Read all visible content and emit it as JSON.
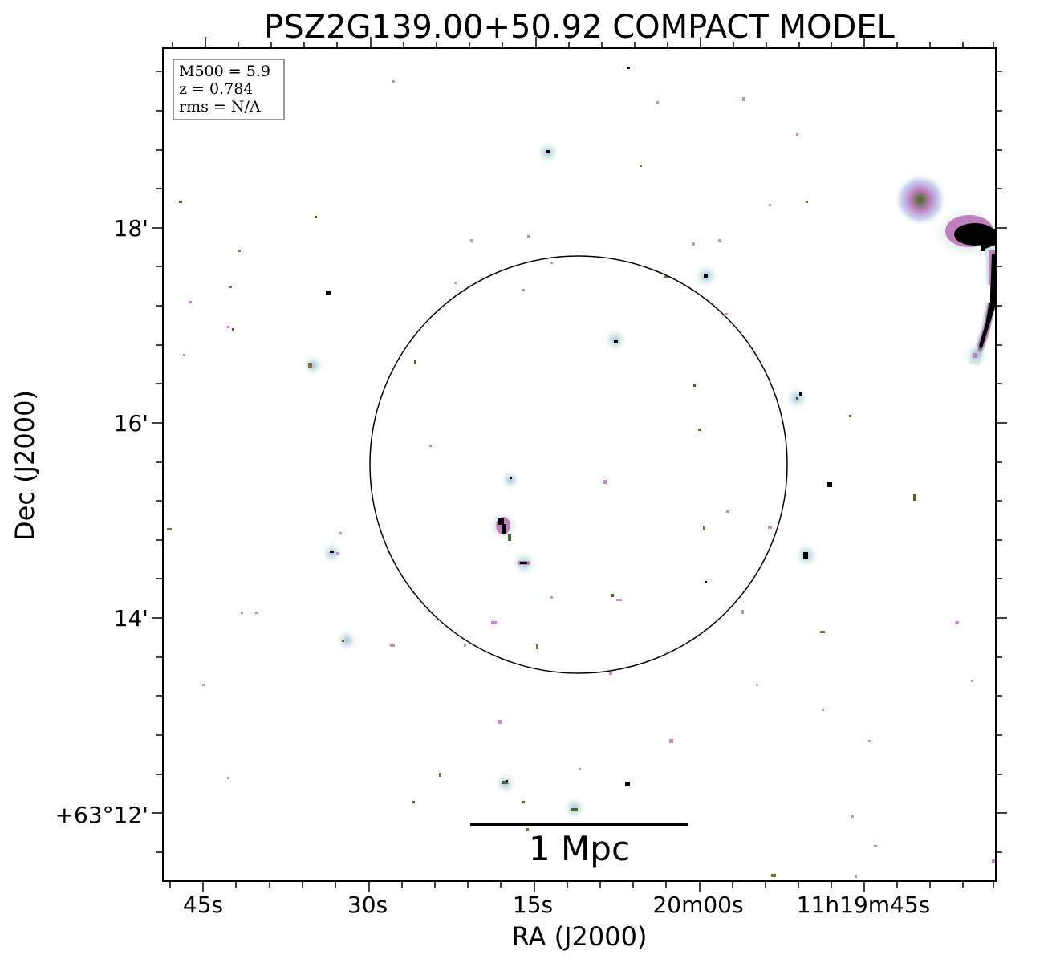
{
  "title": "PSZ2G139.00+50.92 COMPACT MODEL",
  "axes": {
    "xlabel": "RA (J2000)",
    "ylabel": "Dec (J2000)",
    "x_ticks": [
      "45s",
      "30s",
      "15s",
      "20m00s",
      "11h19m45s"
    ],
    "y_ticks": [
      "18'",
      "16'",
      "14'",
      "+63°12'"
    ]
  },
  "info_box": {
    "lines": [
      "M500 = 5.9",
      "z = 0.784",
      "rms = N/A"
    ]
  },
  "scale_bar": {
    "label": "1 Mpc"
  },
  "colors": {
    "frame": "#000000",
    "halo": "#cfe8e2",
    "halo_mid": "#b9b4e6",
    "source_core": "#000000",
    "source_green": "#3f6e1f",
    "noise_pink": "#cc88cc",
    "noise_brown": "#8a6a3a"
  },
  "image_content": {
    "circle": "aperture circle near image center",
    "sources": "compact radio sources with teal/lilac halos; bright extended source at upper-right edge"
  }
}
